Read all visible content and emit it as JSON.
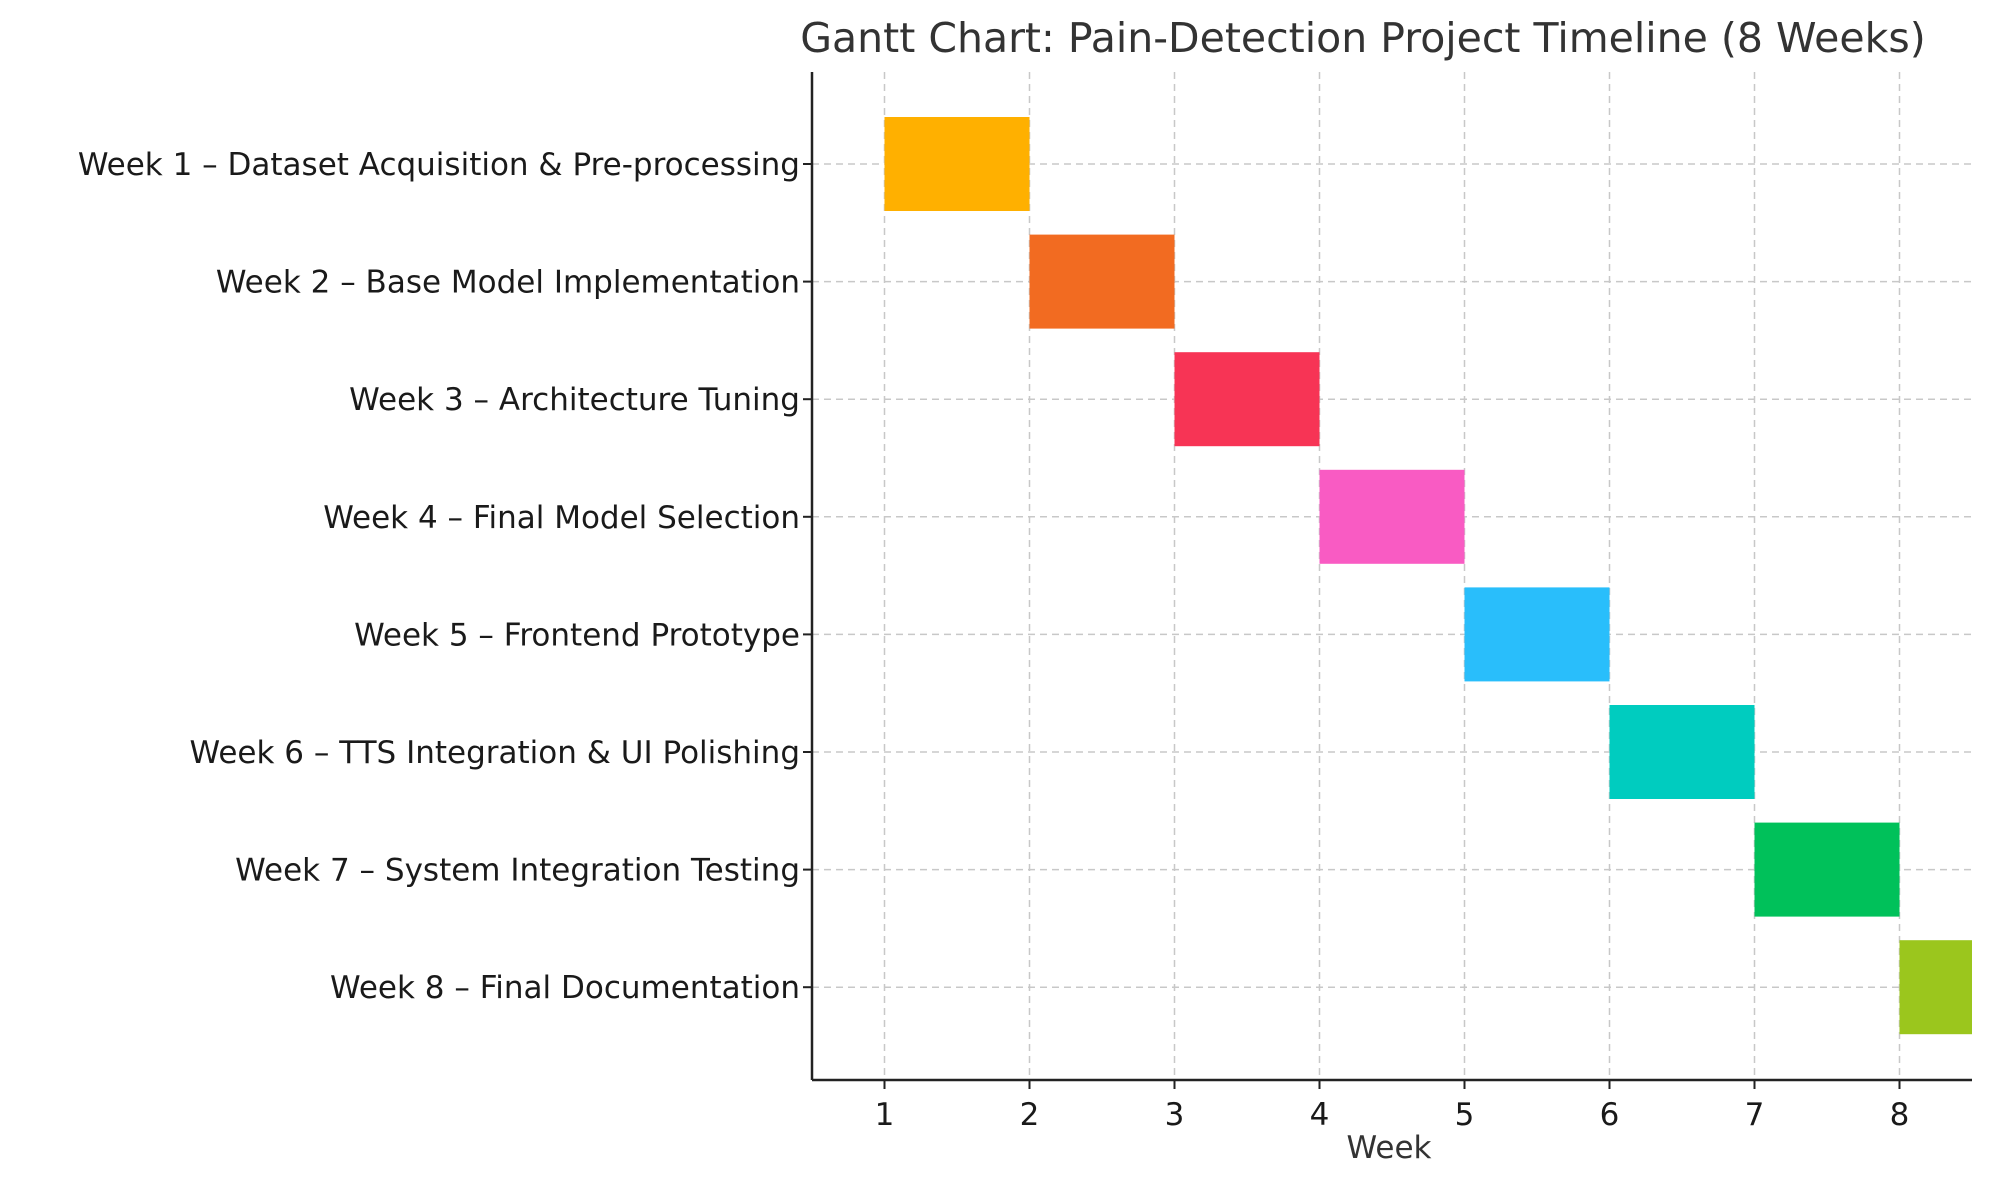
{
  "chart_data": {
    "type": "bar",
    "orientation": "horizontal",
    "title": "Gantt Chart: Pain-Detection Project Timeline (8 Weeks)",
    "xlabel": "Week",
    "ylabel": "",
    "xlim": [
      0.5,
      8.5
    ],
    "xticks": [
      1,
      2,
      3,
      4,
      5,
      6,
      7,
      8
    ],
    "grid": true,
    "legend": "none",
    "tasks": [
      {
        "label": "Week 1 – Dataset Acquisition & Pre-processing",
        "start": 1,
        "duration": 1,
        "color": "#FFB000"
      },
      {
        "label": "Week 2 – Base Model Implementation",
        "start": 2,
        "duration": 1,
        "color": "#F26B21"
      },
      {
        "label": "Week 3 – Architecture Tuning",
        "start": 3,
        "duration": 1,
        "color": "#F73455"
      },
      {
        "label": "Week 4 – Final Model Selection",
        "start": 4,
        "duration": 1,
        "color": "#F95BC3"
      },
      {
        "label": "Week 5 – Frontend Prototype",
        "start": 5,
        "duration": 1,
        "color": "#29BEFB"
      },
      {
        "label": "Week 6 – TTS Integration & UI Polishing",
        "start": 6,
        "duration": 1,
        "color": "#00CCBF"
      },
      {
        "label": "Week 7 – System Integration Testing",
        "start": 7,
        "duration": 1,
        "color": "#00C15A"
      },
      {
        "label": "Week 8 – Final Documentation",
        "start": 8,
        "duration": 1,
        "color": "#9BC61D"
      }
    ]
  }
}
